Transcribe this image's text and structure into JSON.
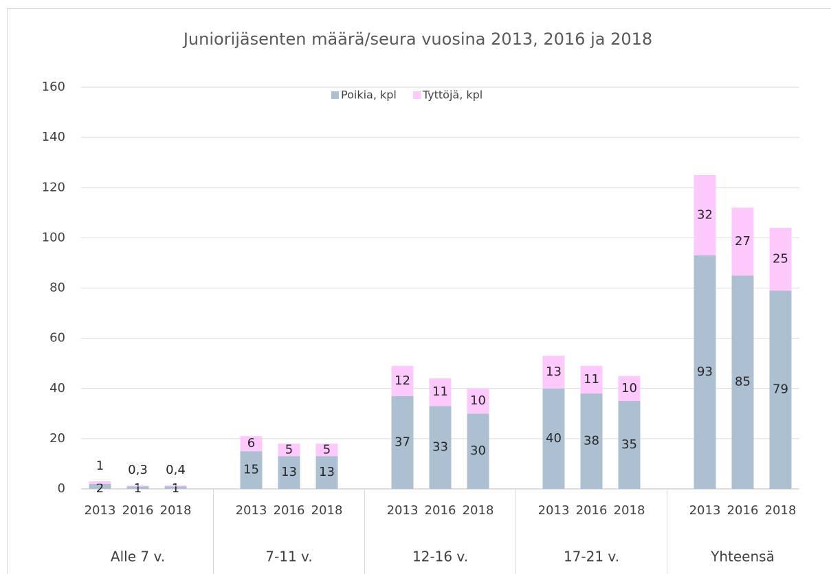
{
  "chart_data": {
    "type": "stacked_bar",
    "title": "Juniorijäsenten määrä/seura vuosina 2013, 2016 ja 2018",
    "groups": [
      "Alle 7 v.",
      "7-11 v.",
      "12-16 v.",
      "17-21 v.",
      "Yhteensä"
    ],
    "categories": [
      "2013",
      "2016",
      "2018",
      "2013",
      "2016",
      "2018",
      "2013",
      "2016",
      "2018",
      "2013",
      "2016",
      "2018",
      "2013",
      "2016",
      "2018"
    ],
    "series": [
      {
        "name": "Poikia, kpl",
        "color": "#adc0d1",
        "values": [
          2,
          1,
          1,
          15,
          13,
          13,
          37,
          33,
          30,
          40,
          38,
          35,
          93,
          85,
          79
        ]
      },
      {
        "name": "Tyttöjä, kpl",
        "color": "#fdc8fc",
        "values": [
          1,
          0.3,
          0.4,
          6,
          5,
          5,
          12,
          11,
          10,
          13,
          11,
          10,
          32,
          27,
          25
        ],
        "value_labels": [
          "1",
          "0,3",
          "0,4",
          "6",
          "5",
          "5",
          "12",
          "11",
          "10",
          "13",
          "11",
          "10",
          "32",
          "27",
          "25"
        ]
      }
    ],
    "ylim": [
      0,
      160
    ],
    "yticks": [
      0,
      20,
      40,
      60,
      80,
      100,
      120,
      140,
      160
    ],
    "grid": true,
    "legend": "top"
  }
}
